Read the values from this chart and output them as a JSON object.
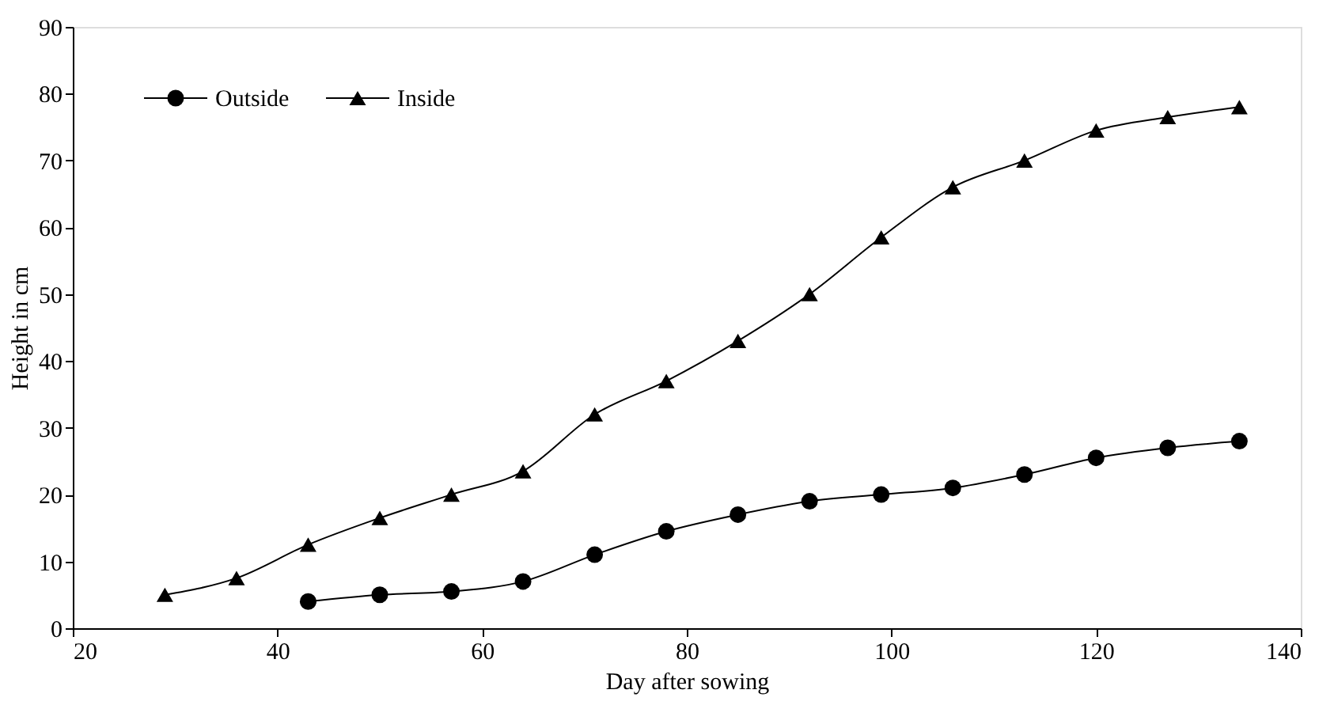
{
  "chart_data": {
    "type": "line",
    "xlabel": "Day after sowing",
    "ylabel": "Height in cm",
    "xlim": [
      20,
      140
    ],
    "xticks": [
      20,
      40,
      60,
      80,
      100,
      120,
      140
    ],
    "ylim": [
      0,
      90
    ],
    "yticks": [
      0,
      10,
      20,
      30,
      40,
      50,
      60,
      70,
      80,
      90
    ],
    "grid": false,
    "legend": "top left",
    "line_style": "solid",
    "series": [
      {
        "name": "Outside",
        "color": "#000000",
        "marker": "circle",
        "x": [
          43,
          50,
          57,
          64,
          71,
          78,
          85,
          92,
          99,
          106,
          113,
          120,
          127,
          134
        ],
        "values": [
          4,
          5,
          5.5,
          7,
          11,
          14.5,
          17,
          19,
          20,
          21,
          23,
          25.5,
          27,
          28
        ]
      },
      {
        "name": "Inside",
        "color": "#000000",
        "marker": "triangle",
        "x": [
          29,
          36,
          43,
          50,
          57,
          64,
          71,
          78,
          85,
          92,
          99,
          106,
          113,
          120,
          127,
          134
        ],
        "values": [
          5,
          7.5,
          12.5,
          16.5,
          20,
          23.5,
          32,
          37,
          43,
          50,
          58.5,
          66,
          70,
          74.5,
          76.5,
          78
        ]
      }
    ]
  }
}
